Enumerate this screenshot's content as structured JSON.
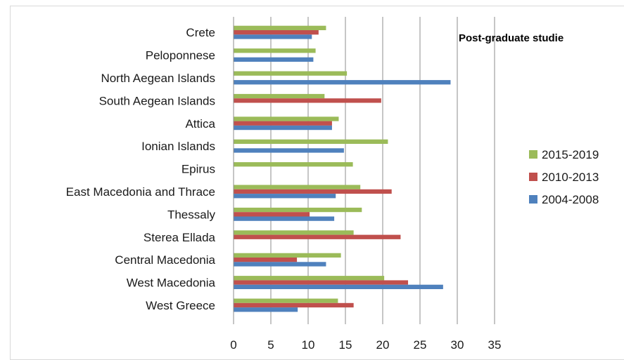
{
  "chart_data": {
    "type": "bar",
    "orientation": "horizontal",
    "title": "Post-graduate studie",
    "categories": [
      "West Greece",
      "West Macedonia",
      "Central Macedonia",
      "Sterea Ellada",
      "Thessaly",
      "East Macedonia and Thrace",
      "Epirus",
      "Ionian Islands",
      "Attica",
      "South Aegean Islands",
      "North Aegean Islands",
      "Peloponnese",
      "Crete"
    ],
    "series": [
      {
        "name": "2015-2019",
        "color": "#9bbb59",
        "values": [
          14.0,
          20.2,
          14.4,
          16.1,
          17.2,
          17.0,
          16.0,
          20.7,
          14.1,
          12.2,
          15.2,
          11.0,
          12.4
        ]
      },
      {
        "name": "2010-2013",
        "color": "#c0504d",
        "values": [
          16.1,
          23.4,
          8.5,
          22.4,
          10.2,
          21.2,
          null,
          null,
          13.2,
          19.8,
          null,
          null,
          11.4
        ]
      },
      {
        "name": "2004-2008",
        "color": "#4f81bd",
        "values": [
          8.6,
          28.1,
          12.4,
          null,
          13.5,
          13.7,
          null,
          14.8,
          13.2,
          null,
          29.1,
          10.7,
          10.5
        ]
      }
    ],
    "legend_order": [
      "2015-2019",
      "2010-2013",
      "2004-2008"
    ],
    "legend_position": "right",
    "xlim": [
      0,
      35
    ],
    "x_ticks": [
      "0",
      "5",
      "10",
      "15",
      "20",
      "25",
      "30",
      "35"
    ],
    "xlabel": "",
    "ylabel": "",
    "grid": "vertical"
  }
}
